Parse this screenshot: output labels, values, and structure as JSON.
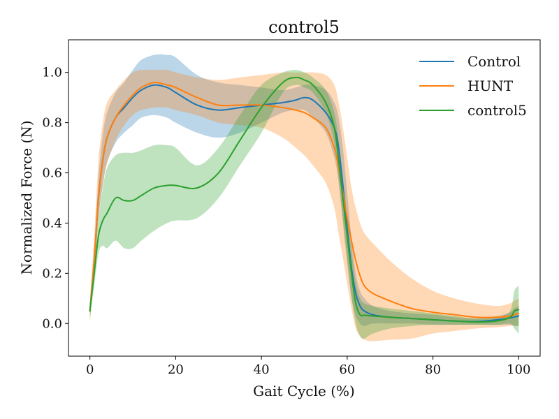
{
  "chart_data": {
    "type": "line",
    "title": "control5",
    "xlabel": "Gait Cycle (%)",
    "ylabel": "Normalized Force (N)",
    "xlim": [
      -5,
      105
    ],
    "ylim": [
      -0.13,
      1.13
    ],
    "xticks": [
      0,
      20,
      40,
      60,
      80,
      100
    ],
    "yticks": [
      0.0,
      0.2,
      0.4,
      0.6,
      0.8,
      1.0
    ],
    "xtick_labels": [
      "0",
      "20",
      "40",
      "60",
      "80",
      "100"
    ],
    "ytick_labels": [
      "0.0",
      "0.2",
      "0.4",
      "0.6",
      "0.8",
      "1.0"
    ],
    "grid": false,
    "legend_position": "top-right",
    "x": [
      0,
      1,
      2,
      3,
      4,
      6,
      8,
      10,
      12,
      15,
      18,
      20,
      25,
      30,
      35,
      40,
      45,
      48,
      50,
      52,
      55,
      57,
      58,
      59,
      60,
      61,
      62,
      63,
      64,
      66,
      70,
      75,
      80,
      85,
      90,
      95,
      98,
      99,
      100
    ],
    "series": [
      {
        "name": "Control",
        "color": "#1f77b4",
        "mean": [
          0.05,
          0.25,
          0.5,
          0.65,
          0.74,
          0.82,
          0.86,
          0.9,
          0.93,
          0.95,
          0.94,
          0.92,
          0.87,
          0.85,
          0.86,
          0.87,
          0.88,
          0.89,
          0.9,
          0.89,
          0.84,
          0.78,
          0.7,
          0.55,
          0.38,
          0.22,
          0.12,
          0.07,
          0.05,
          0.035,
          0.025,
          0.02,
          0.015,
          0.01,
          0.008,
          0.015,
          0.022,
          0.026,
          0.03
        ],
        "lower": [
          0.02,
          0.2,
          0.42,
          0.55,
          0.64,
          0.72,
          0.76,
          0.79,
          0.82,
          0.83,
          0.82,
          0.8,
          0.76,
          0.74,
          0.76,
          0.8,
          0.84,
          0.85,
          0.85,
          0.82,
          0.76,
          0.66,
          0.56,
          0.4,
          0.24,
          0.1,
          0.03,
          0.0,
          -0.01,
          0.0,
          0.0,
          0.0,
          -0.005,
          -0.005,
          -0.005,
          -0.005,
          -0.005,
          -0.008,
          -0.01
        ],
        "upper": [
          0.08,
          0.3,
          0.58,
          0.75,
          0.84,
          0.92,
          0.96,
          1.01,
          1.05,
          1.07,
          1.07,
          1.06,
          0.99,
          0.96,
          0.95,
          0.94,
          0.93,
          0.94,
          0.95,
          0.95,
          0.93,
          0.88,
          0.82,
          0.7,
          0.52,
          0.34,
          0.2,
          0.13,
          0.1,
          0.07,
          0.05,
          0.04,
          0.035,
          0.025,
          0.02,
          0.03,
          0.045,
          0.06,
          0.07
        ]
      },
      {
        "name": "HUNT",
        "color": "#ff7f0e",
        "mean": [
          0.05,
          0.25,
          0.5,
          0.65,
          0.74,
          0.82,
          0.87,
          0.91,
          0.94,
          0.96,
          0.95,
          0.94,
          0.9,
          0.87,
          0.87,
          0.87,
          0.86,
          0.85,
          0.84,
          0.82,
          0.78,
          0.7,
          0.62,
          0.52,
          0.42,
          0.33,
          0.25,
          0.19,
          0.15,
          0.12,
          0.09,
          0.06,
          0.045,
          0.035,
          0.025,
          0.025,
          0.03,
          0.035,
          0.04
        ],
        "lower": [
          0.0,
          0.2,
          0.42,
          0.55,
          0.64,
          0.73,
          0.79,
          0.83,
          0.85,
          0.86,
          0.86,
          0.85,
          0.83,
          0.8,
          0.79,
          0.78,
          0.74,
          0.7,
          0.67,
          0.63,
          0.56,
          0.46,
          0.36,
          0.26,
          0.16,
          0.06,
          -0.02,
          -0.05,
          -0.065,
          -0.07,
          -0.065,
          -0.06,
          -0.04,
          -0.03,
          -0.02,
          -0.015,
          -0.01,
          -0.01,
          -0.01
        ],
        "upper": [
          0.1,
          0.35,
          0.65,
          0.8,
          0.88,
          0.93,
          0.97,
          1.0,
          1.01,
          1.01,
          1.01,
          1.0,
          0.98,
          0.97,
          0.98,
          0.99,
          1.0,
          1.0,
          1.0,
          1.0,
          0.99,
          0.95,
          0.88,
          0.78,
          0.66,
          0.54,
          0.46,
          0.4,
          0.36,
          0.32,
          0.25,
          0.18,
          0.13,
          0.1,
          0.08,
          0.07,
          0.08,
          0.09,
          0.1
        ]
      },
      {
        "name": "control5",
        "color": "#2ca02c",
        "mean": [
          0.05,
          0.2,
          0.35,
          0.41,
          0.44,
          0.5,
          0.49,
          0.49,
          0.51,
          0.54,
          0.55,
          0.55,
          0.54,
          0.6,
          0.73,
          0.86,
          0.96,
          0.98,
          0.97,
          0.95,
          0.88,
          0.78,
          0.65,
          0.5,
          0.35,
          0.2,
          0.08,
          0.035,
          0.033,
          0.03,
          0.025,
          0.02,
          0.015,
          0.01,
          0.006,
          0.01,
          0.025,
          0.05,
          0.055
        ],
        "lower": [
          0.02,
          0.15,
          0.28,
          0.31,
          0.3,
          0.33,
          0.3,
          0.3,
          0.33,
          0.37,
          0.4,
          0.41,
          0.42,
          0.5,
          0.63,
          0.76,
          0.92,
          0.95,
          0.94,
          0.92,
          0.84,
          0.72,
          0.58,
          0.42,
          0.26,
          0.11,
          0.0,
          -0.05,
          -0.06,
          -0.04,
          -0.02,
          -0.01,
          -0.005,
          -0.005,
          -0.005,
          -0.005,
          0.0,
          -0.02,
          -0.04
        ],
        "upper": [
          0.08,
          0.25,
          0.42,
          0.54,
          0.62,
          0.67,
          0.68,
          0.68,
          0.69,
          0.71,
          0.71,
          0.7,
          0.63,
          0.7,
          0.83,
          0.95,
          1.0,
          1.01,
          1.0,
          0.98,
          0.93,
          0.84,
          0.73,
          0.58,
          0.43,
          0.29,
          0.16,
          0.1,
          0.08,
          0.07,
          0.06,
          0.05,
          0.04,
          0.03,
          0.02,
          0.025,
          0.05,
          0.13,
          0.15
        ]
      }
    ]
  }
}
